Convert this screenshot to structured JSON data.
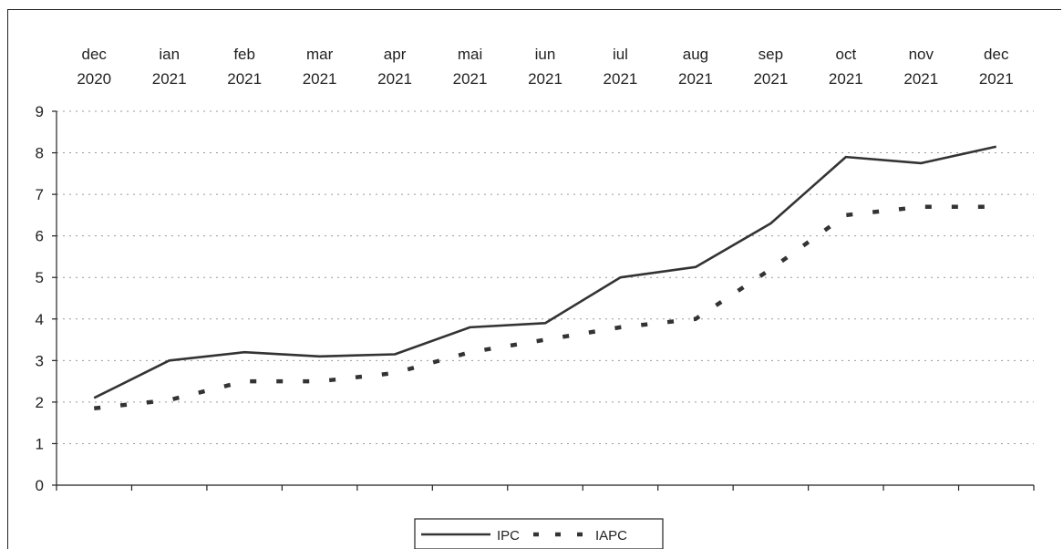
{
  "chart_data": {
    "type": "line",
    "categories": [
      [
        "dec",
        "2020"
      ],
      [
        "ian",
        "2021"
      ],
      [
        "feb",
        "2021"
      ],
      [
        "mar",
        "2021"
      ],
      [
        "apr",
        "2021"
      ],
      [
        "mai",
        "2021"
      ],
      [
        "iun",
        "2021"
      ],
      [
        "iul",
        "2021"
      ],
      [
        "aug",
        "2021"
      ],
      [
        "sep",
        "2021"
      ],
      [
        "oct",
        "2021"
      ],
      [
        "nov",
        "2021"
      ],
      [
        "dec",
        "2021"
      ]
    ],
    "series": [
      {
        "name": "IPC",
        "style": "solid",
        "color": "#333333",
        "values": [
          2.1,
          3.0,
          3.2,
          3.1,
          3.15,
          3.8,
          3.9,
          5.0,
          5.25,
          6.3,
          7.9,
          7.75,
          8.15
        ]
      },
      {
        "name": "IAPC",
        "style": "dashed",
        "color": "#333333",
        "values": [
          1.85,
          2.05,
          2.5,
          2.5,
          2.7,
          3.2,
          3.5,
          3.8,
          4.0,
          5.2,
          6.5,
          6.7,
          6.7
        ]
      }
    ],
    "ylim": [
      0,
      9
    ],
    "yticks": [
      0,
      1,
      2,
      3,
      4,
      5,
      6,
      7,
      8,
      9
    ],
    "grid": true,
    "legend_position": "bottom-center"
  }
}
